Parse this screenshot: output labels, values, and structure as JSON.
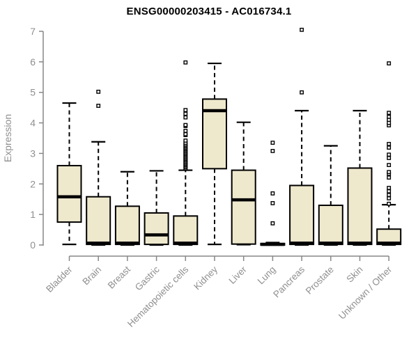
{
  "title": "ENSG00000203415 - AC016734.1",
  "chart_data": {
    "type": "boxplot",
    "title": "ENSG00000203415 - AC016734.1",
    "xlabel": "",
    "ylabel": "Expression",
    "ylim": [
      0,
      7
    ],
    "yticks": [
      0,
      1,
      2,
      3,
      4,
      5,
      6,
      7
    ],
    "grid": false,
    "legend": "none",
    "categories": [
      "Bladder",
      "Brain",
      "Breast",
      "Gastric",
      "Hematopoietic cells",
      "Kidney",
      "Liver",
      "Lung",
      "Pancreas",
      "Prostate",
      "Skin",
      "Unknown / Other"
    ],
    "series": [
      {
        "name": "Bladder",
        "low": 0.02,
        "q1": 0.75,
        "median": 1.58,
        "q3": 2.6,
        "high": 4.65,
        "outliers": []
      },
      {
        "name": "Brain",
        "low": 0,
        "q1": 0.02,
        "median": 0.06,
        "q3": 1.58,
        "high": 3.38,
        "outliers": [
          4.56,
          5.02
        ]
      },
      {
        "name": "Breast",
        "low": 0,
        "q1": 0.02,
        "median": 0.06,
        "q3": 1.27,
        "high": 2.4,
        "outliers": []
      },
      {
        "name": "Gastric",
        "low": 0,
        "q1": 0.02,
        "median": 0.33,
        "q3": 1.05,
        "high": 2.43,
        "outliers": []
      },
      {
        "name": "Hematopoietic cells",
        "low": 0,
        "q1": 0.02,
        "median": 0.06,
        "q3": 0.95,
        "high": 2.45,
        "outliers": [
          2.5,
          2.54,
          2.58,
          2.62,
          2.66,
          2.7,
          2.74,
          2.78,
          2.82,
          2.86,
          2.9,
          2.94,
          2.98,
          3.02,
          3.06,
          3.1,
          3.14,
          3.18,
          3.22,
          3.26,
          3.3,
          3.35,
          3.42,
          3.6,
          3.63,
          3.74,
          3.9,
          3.93,
          4.18,
          4.3,
          4.42,
          5.98
        ]
      },
      {
        "name": "Kidney",
        "low": 0.02,
        "q1": 2.5,
        "median": 4.4,
        "q3": 4.78,
        "high": 5.95,
        "outliers": []
      },
      {
        "name": "Liver",
        "low": 0.01,
        "q1": 0.03,
        "median": 1.48,
        "q3": 2.45,
        "high": 4.02,
        "outliers": []
      },
      {
        "name": "Lung",
        "low": 0,
        "q1": 0,
        "median": 0.02,
        "q3": 0.05,
        "high": 0.08,
        "outliers": [
          0.71,
          1.37,
          1.69,
          3.08,
          3.35
        ]
      },
      {
        "name": "Pancreas",
        "low": 0,
        "q1": 0.02,
        "median": 0.06,
        "q3": 1.95,
        "high": 4.4,
        "outliers": [
          5.0,
          7.05
        ]
      },
      {
        "name": "Prostate",
        "low": 0,
        "q1": 0.02,
        "median": 0.06,
        "q3": 1.3,
        "high": 3.25,
        "outliers": []
      },
      {
        "name": "Skin",
        "low": 0,
        "q1": 0.02,
        "median": 0.06,
        "q3": 2.52,
        "high": 4.4,
        "outliers": []
      },
      {
        "name": "Unknown / Other",
        "low": 0,
        "q1": 0.02,
        "median": 0.06,
        "q3": 0.52,
        "high": 1.32,
        "outliers": [
          1.35,
          1.53,
          1.64,
          1.76,
          1.87,
          2.21,
          2.33,
          2.39,
          2.62,
          2.85,
          2.96,
          3.19,
          3.31,
          3.92,
          4.0,
          4.1,
          4.2,
          4.33,
          5.95
        ]
      }
    ],
    "colors": {
      "box_fill": "#EEE8CD",
      "box_border": "#000000",
      "median": "#000000",
      "whisker": "#000000",
      "outlier": "#000000",
      "axis_line": "#878787",
      "tick_label": "#8f8f8f",
      "axis_label": "#8f8f8f",
      "title": "#000000",
      "background": "#ffffff"
    }
  }
}
